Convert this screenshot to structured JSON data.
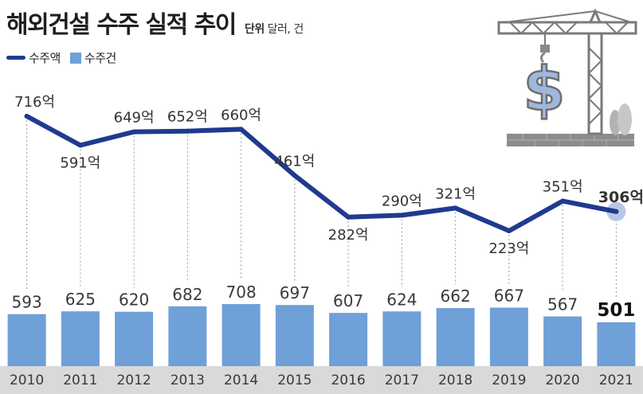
{
  "title": "해외건설 수주 실적 추이",
  "unit": {
    "head": "단위",
    "text": "달러, 건"
  },
  "legend": {
    "line_label": "수주액",
    "bar_label": "수주건"
  },
  "colors": {
    "line": "#1f3a8f",
    "bar": "#6fa0d8",
    "axis_band": "#d9d9d9",
    "highlight": "#b9c7e6"
  },
  "illustration": {
    "icon": "crane-dollar-icon",
    "symbol": "$"
  },
  "chart_data": {
    "type": "bar",
    "categories": [
      "2010",
      "2011",
      "2012",
      "2013",
      "2014",
      "2015",
      "2016",
      "2017",
      "2018",
      "2019",
      "2020",
      "2021"
    ],
    "series": [
      {
        "name": "수주건",
        "type": "bar",
        "values": [
          593,
          625,
          620,
          682,
          708,
          697,
          607,
          624,
          662,
          667,
          567,
          501
        ],
        "labels": [
          "593",
          "625",
          "620",
          "682",
          "708",
          "697",
          "607",
          "624",
          "662",
          "667",
          "567",
          "501"
        ]
      },
      {
        "name": "수주액",
        "type": "line",
        "values": [
          716,
          591,
          649,
          652,
          660,
          461,
          282,
          290,
          321,
          223,
          351,
          306
        ],
        "labels": [
          "716억",
          "591억",
          "649억",
          "652억",
          "660억",
          "461억",
          "282억",
          "290억",
          "321억",
          "223억",
          "351억",
          "306억"
        ]
      }
    ],
    "xlabel": "",
    "ylabel": "",
    "highlight_category": "2021"
  }
}
